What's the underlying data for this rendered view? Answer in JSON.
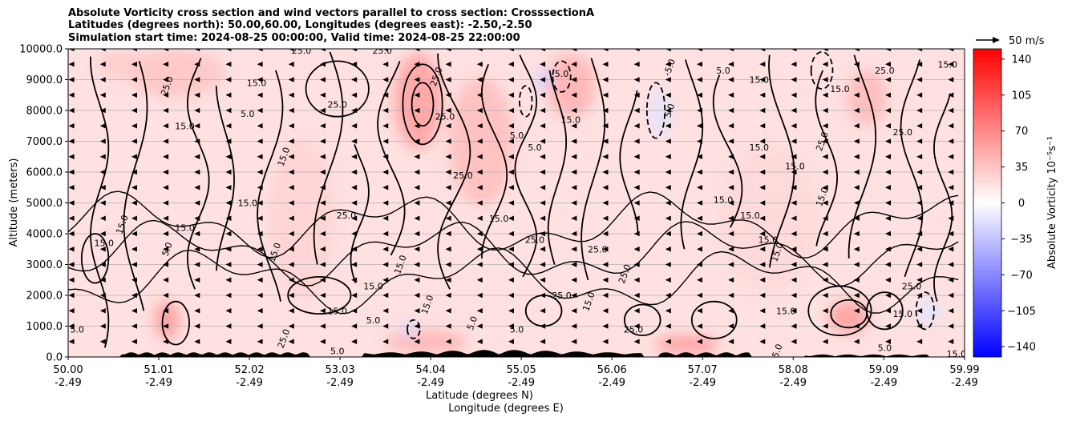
{
  "chart_data": {
    "type": "contour",
    "title_lines": [
      "Absolute Vorticity cross section and wind vectors parallel to cross section: CrosssectionA",
      "Latitudes (degrees north): 50.00,60.00, Longitudes (degrees east): -2.50,-2.50",
      "Simulation start time: 2024-08-25 00:00:00, Valid time: 2024-08-25 22:00:00"
    ],
    "ylabel": "Altitude (meters)",
    "xlabel_lines": [
      "Latitude (degrees N)",
      "Longitude (degrees E)"
    ],
    "ylim": [
      0,
      10000
    ],
    "y_ticks": [
      "0.0",
      "1000.0",
      "2000.0",
      "3000.0",
      "4000.0",
      "5000.0",
      "6000.0",
      "7000.0",
      "8000.0",
      "9000.0",
      "10000.0"
    ],
    "x_ticks": [
      {
        "lat": "50.00",
        "lon": "-2.49"
      },
      {
        "lat": "51.01",
        "lon": "-2.49"
      },
      {
        "lat": "52.02",
        "lon": "-2.49"
      },
      {
        "lat": "53.03",
        "lon": "-2.49"
      },
      {
        "lat": "54.04",
        "lon": "-2.49"
      },
      {
        "lat": "55.05",
        "lon": "-2.49"
      },
      {
        "lat": "56.06",
        "lon": "-2.49"
      },
      {
        "lat": "57.07",
        "lon": "-2.49"
      },
      {
        "lat": "58.08",
        "lon": "-2.49"
      },
      {
        "lat": "59.09",
        "lon": "-2.49"
      },
      {
        "lat": "59.99",
        "lon": "-2.49"
      }
    ],
    "colorbar": {
      "label": "Absolute Vorticity 10⁻⁵s⁻¹",
      "ticks": [
        "140",
        "105",
        "70",
        "35",
        "0",
        "−35",
        "−70",
        "−105",
        "−140"
      ],
      "range": [
        -150,
        150
      ]
    },
    "quiver_key": "50 m/s",
    "contour_labels": [
      {
        "text": "25.0",
        "lat": 52.6,
        "alt": 9950
      },
      {
        "text": "25.0",
        "lat": 53.5,
        "alt": 9950
      },
      {
        "text": "25.0",
        "lat": 51.1,
        "alt": 8800
      },
      {
        "text": "15.0",
        "lat": 52.1,
        "alt": 8900
      },
      {
        "text": "25.0",
        "lat": 53.0,
        "alt": 8200
      },
      {
        "text": "5.0",
        "lat": 52.0,
        "alt": 7900
      },
      {
        "text": "15.0",
        "lat": 51.3,
        "alt": 7500
      },
      {
        "text": "25.0",
        "lat": 54.1,
        "alt": 9100
      },
      {
        "text": "-5.0",
        "lat": 56.7,
        "alt": 9400
      },
      {
        "text": "25.0",
        "lat": 54.2,
        "alt": 7800
      },
      {
        "text": "5.0",
        "lat": 55.0,
        "alt": 7200
      },
      {
        "text": "15.0",
        "lat": 55.6,
        "alt": 7700
      },
      {
        "text": "5.0",
        "lat": 55.2,
        "alt": 6800
      },
      {
        "text": "15.0",
        "lat": 52.4,
        "alt": 6500
      },
      {
        "text": "25.0",
        "lat": 54.4,
        "alt": 5900
      },
      {
        "text": "15.0",
        "lat": 57.7,
        "alt": 6800
      },
      {
        "text": "15.0",
        "lat": 58.1,
        "alt": 6200
      },
      {
        "text": "25.0",
        "lat": 58.4,
        "alt": 7000
      },
      {
        "text": "25.0",
        "lat": 59.3,
        "alt": 7300
      },
      {
        "text": "15.0",
        "lat": 59.8,
        "alt": 9500
      },
      {
        "text": "25.0",
        "lat": 59.1,
        "alt": 9300
      },
      {
        "text": "15.0",
        "lat": 57.3,
        "alt": 5100
      },
      {
        "text": "15.0",
        "lat": 57.6,
        "alt": 4600
      },
      {
        "text": "15.0",
        "lat": 58.4,
        "alt": 5200
      },
      {
        "text": "25.0",
        "lat": 53.1,
        "alt": 4600
      },
      {
        "text": "15.0",
        "lat": 52.0,
        "alt": 5000
      },
      {
        "text": "15.0",
        "lat": 51.3,
        "alt": 4200
      },
      {
        "text": "15.0",
        "lat": 50.6,
        "alt": 4300
      },
      {
        "text": "15.0",
        "lat": 50.4,
        "alt": 3700
      },
      {
        "text": "15.0",
        "lat": 52.3,
        "alt": 3400
      },
      {
        "text": "15.0",
        "lat": 57.8,
        "alt": 3800
      },
      {
        "text": "15.0",
        "lat": 57.9,
        "alt": 3400
      },
      {
        "text": "15.0",
        "lat": 54.8,
        "alt": 4500
      },
      {
        "text": "25.0",
        "lat": 55.2,
        "alt": 3800
      },
      {
        "text": "25.0",
        "lat": 55.9,
        "alt": 3500
      },
      {
        "text": "25.0",
        "lat": 56.2,
        "alt": 2700
      },
      {
        "text": "15.0",
        "lat": 53.4,
        "alt": 2300
      },
      {
        "text": "15.0",
        "lat": 53.7,
        "alt": 3000
      },
      {
        "text": "25.0",
        "lat": 55.5,
        "alt": 2000
      },
      {
        "text": "15.0",
        "lat": 55.8,
        "alt": 1800
      },
      {
        "text": "15.0",
        "lat": 53.0,
        "alt": 1500
      },
      {
        "text": "15.0",
        "lat": 54.0,
        "alt": 1700
      },
      {
        "text": "5.0",
        "lat": 53.4,
        "alt": 1200
      },
      {
        "text": "25.0",
        "lat": 56.3,
        "alt": 900
      },
      {
        "text": "15.0",
        "lat": 58.0,
        "alt": 1500
      },
      {
        "text": "25.0",
        "lat": 59.4,
        "alt": 2300
      },
      {
        "text": "15.0",
        "lat": 59.3,
        "alt": 1400
      },
      {
        "text": "15.0",
        "lat": 59.9,
        "alt": 100
      },
      {
        "text": "5.0",
        "lat": 50.1,
        "alt": 900
      },
      {
        "text": "5.0",
        "lat": 59.1,
        "alt": 300
      },
      {
        "text": "5.0",
        "lat": 57.9,
        "alt": 200
      },
      {
        "text": "5.0",
        "lat": 54.5,
        "alt": 1100
      },
      {
        "text": "5.0",
        "lat": 55.0,
        "alt": 900
      },
      {
        "text": "25.0",
        "lat": 52.4,
        "alt": 600
      },
      {
        "text": "5.0",
        "lat": 53.0,
        "alt": 200
      },
      {
        "text": "5.0",
        "lat": 51.1,
        "alt": 3500
      },
      {
        "text": "5.0",
        "lat": 55.5,
        "alt": 9200
      },
      {
        "text": "5.0",
        "lat": 57.3,
        "alt": 9300
      },
      {
        "text": "15.0",
        "lat": 57.7,
        "alt": 9000
      },
      {
        "text": "5.0",
        "lat": 56.7,
        "alt": 8000
      },
      {
        "text": "15.0",
        "lat": 58.6,
        "alt": 8700
      }
    ]
  }
}
